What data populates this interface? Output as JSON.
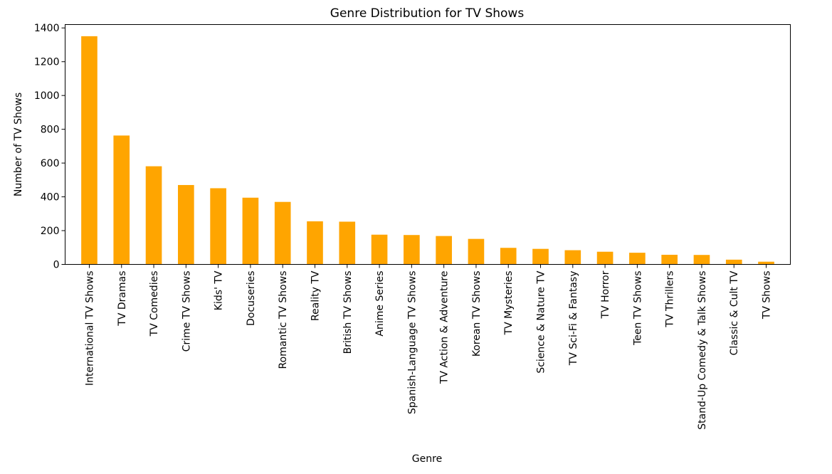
{
  "chart_data": {
    "type": "bar",
    "title": "Genre Distribution for TV Shows",
    "xlabel": "Genre",
    "ylabel": "Number of TV Shows",
    "ylim": [
      0,
      1420
    ],
    "yticks": [
      0,
      200,
      400,
      600,
      800,
      1000,
      1200,
      1400
    ],
    "grid": false,
    "bar_color": "#FFA500",
    "categories": [
      "International TV Shows",
      "TV Dramas",
      "TV Comedies",
      "Crime TV Shows",
      "Kids' TV",
      "Docuseries",
      "Romantic TV Shows",
      "Reality TV",
      "British TV Shows",
      "Anime Series",
      "Spanish-Language TV Shows",
      "TV Action & Adventure",
      "Korean TV Shows",
      "TV Mysteries",
      "Science & Nature TV",
      "TV Sci-Fi & Fantasy",
      "TV Horror",
      "Teen TV Shows",
      "TV Thrillers",
      "Stand-Up Comedy & Talk Shows",
      "Classic & Cult TV",
      "TV Shows"
    ],
    "values": [
      1351,
      763,
      581,
      470,
      451,
      395,
      370,
      255,
      253,
      176,
      174,
      168,
      151,
      98,
      92,
      84,
      75,
      69,
      57,
      56,
      28,
      16
    ]
  }
}
